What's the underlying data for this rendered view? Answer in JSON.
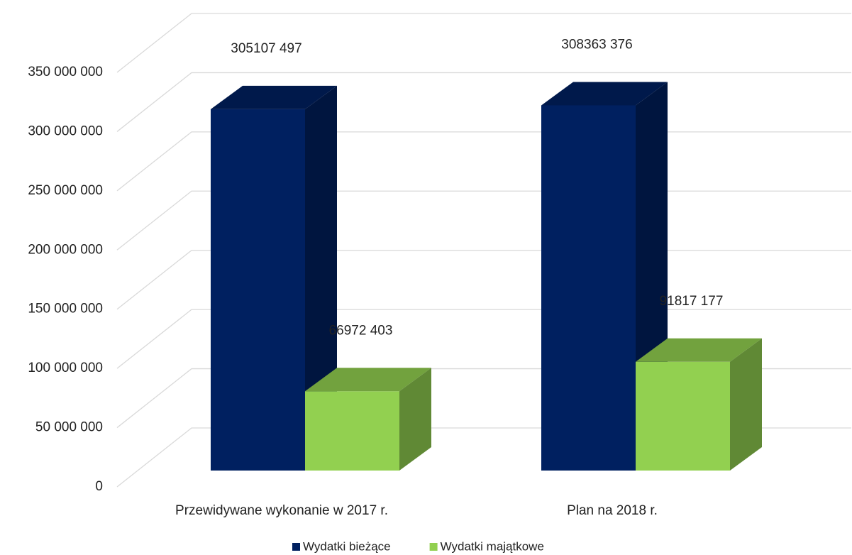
{
  "chart_data": {
    "type": "bar3d",
    "categories": [
      "Przewidywane wykonanie w 2017 r.",
      "Plan na 2018 r."
    ],
    "series": [
      {
        "name": "Wydatki bieżące",
        "color": "#002060",
        "values": [
          305107497,
          308363376
        ],
        "value_labels": [
          "305107 497",
          "308363 376"
        ]
      },
      {
        "name": "Wydatki majątkowe",
        "color": "#92d050",
        "values": [
          66972403,
          91817177
        ],
        "value_labels": [
          "66972 403",
          "91817 177"
        ]
      }
    ],
    "ylim": [
      0,
      350000000
    ],
    "yticks": [
      0,
      {
        "value": 50000000,
        "label": "50 000 000"
      },
      {
        "value": 100000000,
        "label": "100 000 000"
      },
      {
        "value": 150000000,
        "label": "150 000 000"
      },
      {
        "value": 200000000,
        "label": "200 000 000"
      },
      {
        "value": 250000000,
        "label": "250 000 000"
      },
      {
        "value": 300000000,
        "label": "300 000 000"
      },
      {
        "value": 350000000,
        "label": "350 000 000"
      }
    ],
    "grid": true,
    "legend": "bottom"
  }
}
